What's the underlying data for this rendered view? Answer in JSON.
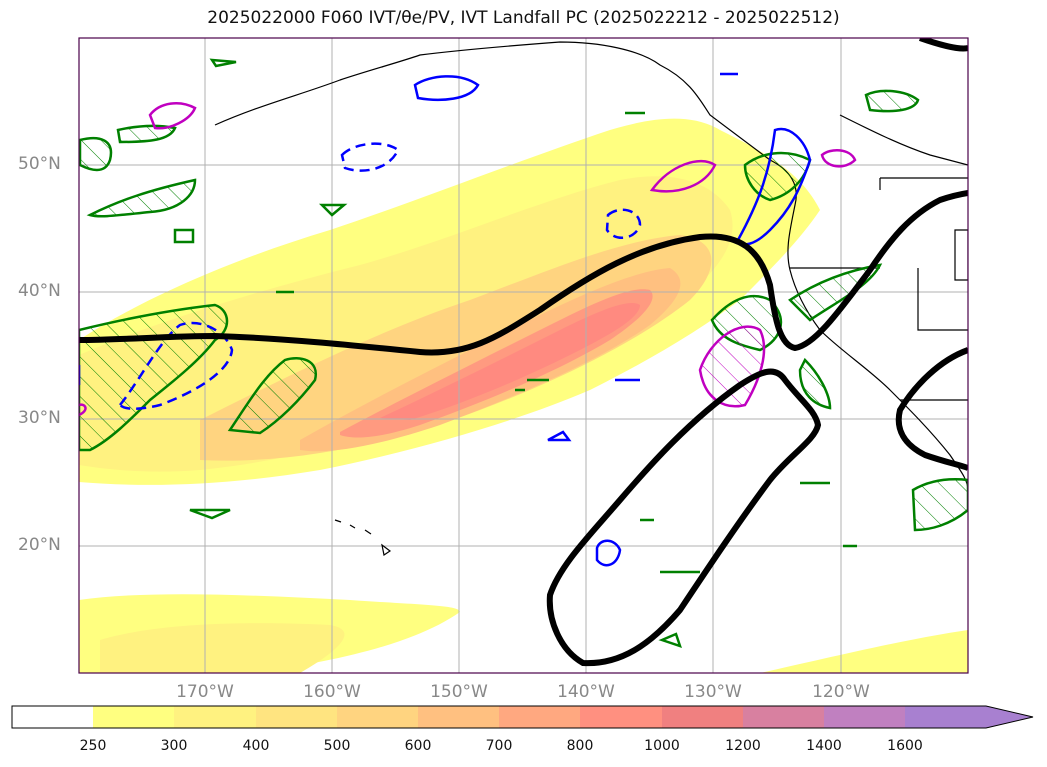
{
  "title": "2025022000 F060 IVT/θe/PV, IVT Landfall PC (2025022212 - 2025022512)",
  "lat_labels": [
    "50°N",
    "40°N",
    "30°N",
    "20°N"
  ],
  "lon_labels": [
    "170°W",
    "160°W",
    "150°W",
    "140°W",
    "130°W",
    "120°W"
  ],
  "colorbar": {
    "levels": [
      "250",
      "300",
      "400",
      "500",
      "600",
      "700",
      "800",
      "1000",
      "1200",
      "1400",
      "1600"
    ],
    "colors": [
      "#ffffff",
      "#ffff80",
      "#fff280",
      "#ffe480",
      "#ffd480",
      "#ffc080",
      "#ffa880",
      "#ff9080",
      "#f08080",
      "#d880a0",
      "#c080c0",
      "#a880d0"
    ]
  },
  "contour_colors": {
    "ivt_fill_low": "#ffff80",
    "ivt_fill_mid": "#ffd480",
    "ivt_fill_high": "#ff8a80",
    "landfall_pc": "#000000",
    "pv_green": "#008000",
    "theta_blue": "#0000ff",
    "theta_magenta": "#c000c0"
  }
}
